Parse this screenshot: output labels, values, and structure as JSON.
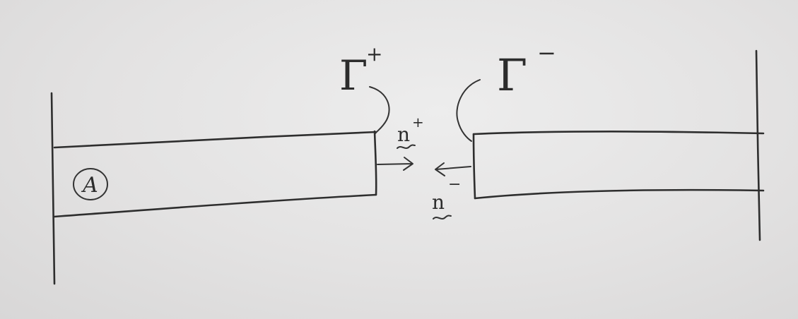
{
  "labels": {
    "body_label": "A",
    "gamma_plus_base": "Γ",
    "gamma_plus_sup": "+",
    "gamma_minus_base": "Γ",
    "gamma_minus_sup": "−",
    "n_plus_base": "n",
    "n_plus_sup": "+",
    "n_minus_base": "n",
    "n_minus_sup": "−"
  },
  "colors": {
    "ink": "#2e2e2e",
    "paper": "#e4e3e3"
  }
}
